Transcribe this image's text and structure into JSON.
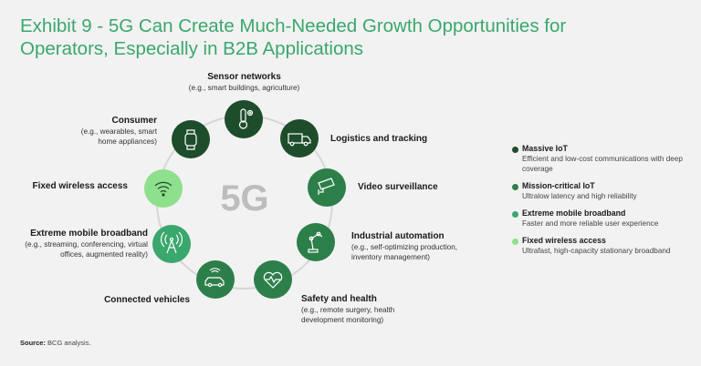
{
  "title": "Exhibit 9 - 5G Can Create Much-Needed Growth Opportunities for Operators, Especially in B2B Applications",
  "center_label": "5G",
  "colors": {
    "massive_iot": "#1e4d2b",
    "mission_critical_iot": "#2d7f4a",
    "extreme_mobile_broadband": "#3aa76d",
    "fixed_wireless_access": "#8fe08c",
    "ring": "#d6d6d6"
  },
  "nodes": [
    {
      "name": "Sensor networks",
      "sub": "(e.g., smart buildings, agriculture)",
      "category": "massive_iot",
      "icon": "thermometer-icon"
    },
    {
      "name": "Logistics and tracking",
      "sub": "",
      "category": "massive_iot",
      "icon": "truck-icon"
    },
    {
      "name": "Video surveillance",
      "sub": "",
      "category": "mission_critical_iot",
      "icon": "camera-icon"
    },
    {
      "name": "Industrial automation",
      "sub": "(e.g., self-optimizing production, inventory management)",
      "category": "mission_critical_iot",
      "icon": "robot-arm-icon"
    },
    {
      "name": "Safety and health",
      "sub": "(e.g., remote surgery, health development monitoring)",
      "category": "mission_critical_iot",
      "icon": "heart-icon"
    },
    {
      "name": "Connected vehicles",
      "sub": "",
      "category": "mission_critical_iot",
      "icon": "car-icon"
    },
    {
      "name": "Extreme mobile broadband",
      "sub": "(e.g., streaming, conferencing, virtual offices, augmented reality)",
      "category": "extreme_mobile_broadband",
      "icon": "antenna-icon"
    },
    {
      "name": "Fixed wireless access",
      "sub": "",
      "category": "fixed_wireless_access",
      "icon": "wifi-icon"
    },
    {
      "name": "Consumer",
      "sub": "(e.g., wearables, smart home appliances)",
      "category": "massive_iot",
      "icon": "smartwatch-icon"
    }
  ],
  "legend": [
    {
      "name": "Massive IoT",
      "desc": "Efficient and low-cost communications with deep coverage",
      "color": "#1e4d2b"
    },
    {
      "name": "Mission-critical IoT",
      "desc": "Ultralow latency and high reliability",
      "color": "#2d7f4a"
    },
    {
      "name": "Extreme mobile broadband",
      "desc": "Faster and more reliable user experience",
      "color": "#3aa76d"
    },
    {
      "name": "Fixed wireless access",
      "desc": "Ultrafast, high-capacity stationary broadband",
      "color": "#8fe08c"
    }
  ],
  "source_label": "Source:",
  "source_text": "BCG analysis."
}
